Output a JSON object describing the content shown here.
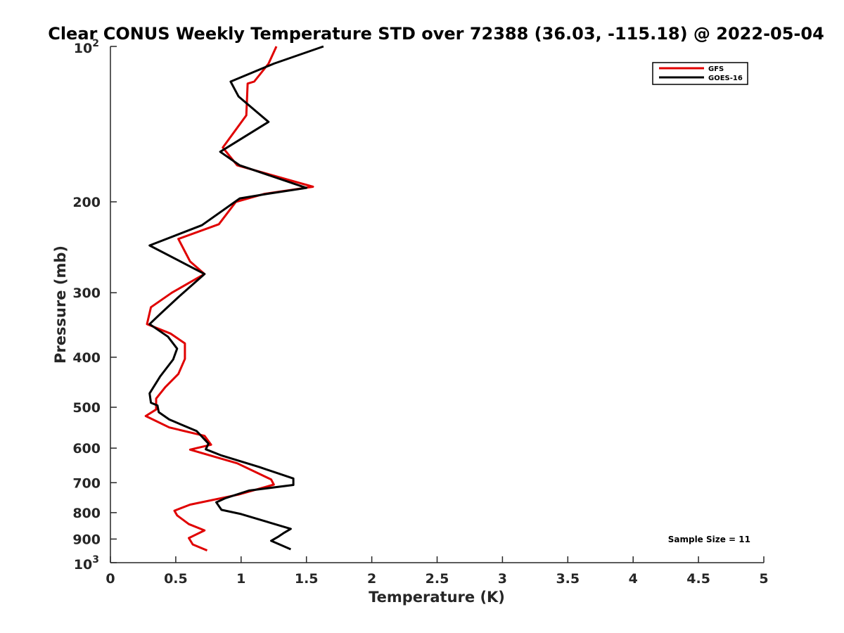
{
  "chart_data": {
    "type": "line",
    "title": "Clear CONUS Weekly Temperature STD over 72388 (36.03, -115.18) @ 2022-05-04",
    "xlabel": "Temperature (K)",
    "ylabel": "Pressure (mb)",
    "xlim": [
      0,
      5
    ],
    "ylim": [
      100,
      1000
    ],
    "y_scale": "log",
    "y_reversed": true,
    "x_ticks": [
      "0",
      "0.5",
      "1",
      "1.5",
      "2",
      "2.5",
      "3",
      "3.5",
      "4",
      "4.5",
      "5"
    ],
    "x_tick_values": [
      0,
      0.5,
      1,
      1.5,
      2,
      2.5,
      3,
      3.5,
      4,
      4.5,
      5
    ],
    "y_ticks": [
      {
        "value": 200,
        "label": "200"
      },
      {
        "value": 300,
        "label": "300"
      },
      {
        "value": 400,
        "label": "400"
      },
      {
        "value": 500,
        "label": "500"
      },
      {
        "value": 600,
        "label": "600"
      },
      {
        "value": 700,
        "label": "700"
      },
      {
        "value": 800,
        "label": "800"
      },
      {
        "value": 900,
        "label": "900"
      }
    ],
    "y_edge_ticks": [
      {
        "value": 100,
        "base": "10",
        "exp": "2"
      },
      {
        "value": 1000,
        "base": "10",
        "exp": "3"
      }
    ],
    "grid": false,
    "legend_position": "top-right",
    "annotation": "Sample Size = 11",
    "series": [
      {
        "name": "GFS",
        "color": "#e00000",
        "points": [
          [
            1.27,
            100
          ],
          [
            1.21,
            108
          ],
          [
            1.1,
            117
          ],
          [
            1.05,
            118
          ],
          [
            1.04,
            136
          ],
          [
            0.86,
            157
          ],
          [
            0.97,
            170
          ],
          [
            1.55,
            187
          ],
          [
            1.18,
            193
          ],
          [
            0.96,
            200
          ],
          [
            0.83,
            221
          ],
          [
            0.52,
            236
          ],
          [
            0.61,
            261
          ],
          [
            0.72,
            276
          ],
          [
            0.47,
            300
          ],
          [
            0.31,
            320
          ],
          [
            0.28,
            345
          ],
          [
            0.46,
            360
          ],
          [
            0.57,
            376
          ],
          [
            0.57,
            403
          ],
          [
            0.52,
            431
          ],
          [
            0.42,
            457
          ],
          [
            0.35,
            481
          ],
          [
            0.35,
            505
          ],
          [
            0.27,
            520
          ],
          [
            0.45,
            547
          ],
          [
            0.72,
            568
          ],
          [
            0.77,
            591
          ],
          [
            0.61,
            604
          ],
          [
            0.97,
            642
          ],
          [
            1.23,
            690
          ],
          [
            1.25,
            706
          ],
          [
            0.98,
            738
          ],
          [
            0.61,
            772
          ],
          [
            0.49,
            793
          ],
          [
            0.51,
            810
          ],
          [
            0.6,
            842
          ],
          [
            0.72,
            866
          ],
          [
            0.6,
            896
          ],
          [
            0.63,
            922
          ],
          [
            0.74,
            947
          ]
        ]
      },
      {
        "name": "GOES-16",
        "color": "#000000",
        "points": [
          [
            1.63,
            100
          ],
          [
            1.25,
            108
          ],
          [
            0.92,
            117
          ],
          [
            0.98,
            125
          ],
          [
            1.21,
            140
          ],
          [
            0.84,
            160
          ],
          [
            0.99,
            170
          ],
          [
            1.5,
            188
          ],
          [
            1.2,
            193
          ],
          [
            0.99,
            197
          ],
          [
            0.7,
            222
          ],
          [
            0.3,
            243
          ],
          [
            0.72,
            276
          ],
          [
            0.52,
            306
          ],
          [
            0.38,
            330
          ],
          [
            0.3,
            345
          ],
          [
            0.44,
            365
          ],
          [
            0.51,
            385
          ],
          [
            0.48,
            404
          ],
          [
            0.38,
            436
          ],
          [
            0.3,
            470
          ],
          [
            0.31,
            490
          ],
          [
            0.36,
            496
          ],
          [
            0.37,
            511
          ],
          [
            0.45,
            528
          ],
          [
            0.66,
            556
          ],
          [
            0.75,
            588
          ],
          [
            0.73,
            603
          ],
          [
            0.85,
            620
          ],
          [
            1.14,
            653
          ],
          [
            1.4,
            687
          ],
          [
            1.4,
            707
          ],
          [
            1.06,
            725
          ],
          [
            0.88,
            750
          ],
          [
            0.81,
            764
          ],
          [
            0.85,
            790
          ],
          [
            1.0,
            805
          ],
          [
            1.38,
            860
          ],
          [
            1.33,
            875
          ],
          [
            1.28,
            892
          ],
          [
            1.23,
            907
          ],
          [
            1.38,
            942
          ]
        ]
      }
    ]
  }
}
